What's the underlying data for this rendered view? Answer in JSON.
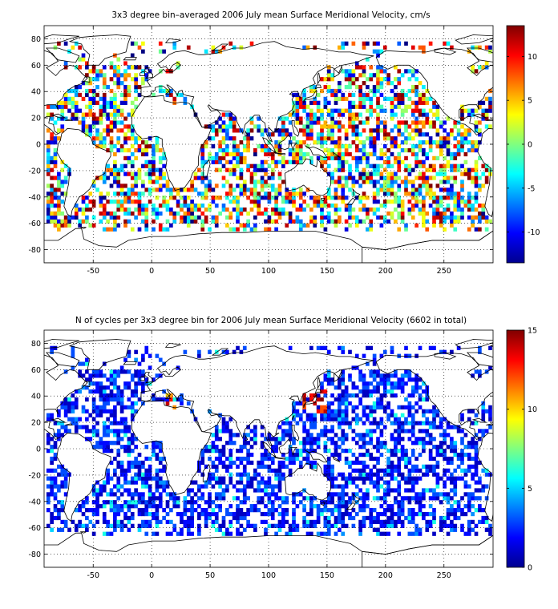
{
  "chart_data": [
    {
      "type": "heatmap",
      "title": "3x3 degree bin–averaged 2006 July mean Surface Meridional Velocity, cm/s",
      "xlabel": "",
      "ylabel": "",
      "xlim": [
        -92,
        292
      ],
      "ylim": [
        -90,
        90
      ],
      "x_ticks": [
        -50,
        0,
        50,
        100,
        150,
        200,
        250
      ],
      "y_ticks": [
        80,
        60,
        40,
        20,
        0,
        -20,
        -40,
        -60,
        -80
      ],
      "bin_size_deg": 3,
      "colorbar": {
        "min": -13.5,
        "max": 13.5,
        "ticks": [
          10,
          5,
          0,
          -5,
          -10
        ],
        "colormap": "jet"
      },
      "grid": true,
      "description_of_values": "Meridional velocity per 3x3 degree ocean bin; noisy field spanning about -13 to +13 cm/s across all ocean basins between 65S and 75N"
    },
    {
      "type": "heatmap",
      "title": "N of cycles per 3x3 degree bin for 2006 July mean Surface Meridional Velocity (6602 in total)",
      "xlabel": "",
      "ylabel": "",
      "xlim": [
        -92,
        292
      ],
      "ylim": [
        -90,
        90
      ],
      "x_ticks": [
        -50,
        0,
        50,
        100,
        150,
        200,
        250
      ],
      "y_ticks": [
        80,
        60,
        40,
        20,
        0,
        -20,
        -40,
        -60,
        -80
      ],
      "bin_size_deg": 3,
      "colorbar": {
        "min": 0,
        "max": 15,
        "ticks": [
          15,
          10,
          5,
          0
        ],
        "colormap": "jet"
      },
      "grid": true,
      "total_cycles": 6602,
      "description_of_values": "Count of float cycles per bin, mostly 1-4 with occasional higher counts (up to ~15) near Japan and the Mediterranean"
    }
  ]
}
